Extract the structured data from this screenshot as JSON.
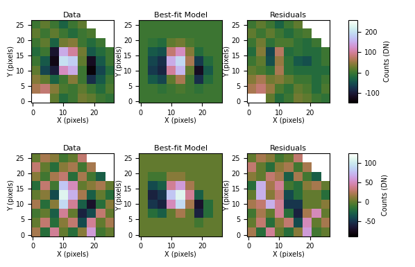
{
  "chart_data": [
    {
      "type": "heatmap",
      "title": "Data",
      "x_label": "X (pixels)",
      "y_label": "Y (pixels)",
      "xlim": [
        -0.5,
        26.5
      ],
      "ylim": [
        -0.5,
        26.5
      ],
      "xticks": [
        0,
        10,
        20
      ],
      "yticks": [
        0,
        5,
        10,
        15,
        20,
        25
      ],
      "color_range": [
        -150,
        260
      ],
      "cells": [
        [
          null,
          null,
          20,
          -20,
          0,
          30,
          20,
          0,
          -10
        ],
        [
          60,
          80,
          40,
          10,
          0,
          20,
          0,
          -20,
          10
        ],
        [
          40,
          20,
          -30,
          0,
          40,
          0,
          -80,
          -40,
          0
        ],
        [
          20,
          -60,
          -100,
          120,
          150,
          0,
          -140,
          -60,
          -20
        ],
        [
          0,
          -40,
          -130,
          200,
          180,
          20,
          -120,
          -40,
          0
        ],
        [
          -20,
          0,
          -110,
          150,
          100,
          30,
          -40,
          -20,
          0
        ],
        [
          0,
          20,
          -30,
          30,
          40,
          0,
          -20,
          0,
          null
        ],
        [
          20,
          0,
          20,
          0,
          -20,
          0,
          10,
          null,
          null
        ],
        [
          0,
          20,
          0,
          -30,
          0,
          20,
          null,
          null,
          null
        ]
      ]
    },
    {
      "type": "heatmap",
      "title": "Best-fit Model",
      "x_label": "X (pixels)",
      "y_label": "Y (pixels)",
      "xlim": [
        -0.5,
        26.5
      ],
      "ylim": [
        -0.5,
        26.5
      ],
      "xticks": [
        0,
        10,
        20
      ],
      "yticks": [
        0,
        5,
        10,
        15,
        20,
        25
      ],
      "color_range": [
        -150,
        260
      ],
      "cells": [
        [
          0,
          0,
          0,
          0,
          0,
          0,
          0,
          0,
          0
        ],
        [
          0,
          0,
          -10,
          0,
          10,
          0,
          -10,
          0,
          0
        ],
        [
          0,
          -40,
          -60,
          20,
          60,
          0,
          -80,
          -20,
          0
        ],
        [
          0,
          -70,
          -90,
          100,
          160,
          20,
          -120,
          -40,
          0
        ],
        [
          0,
          -60,
          -80,
          150,
          190,
          60,
          -70,
          -20,
          0
        ],
        [
          0,
          -40,
          -50,
          80,
          120,
          40,
          -20,
          0,
          0
        ],
        [
          0,
          -10,
          -20,
          20,
          30,
          10,
          0,
          0,
          0
        ],
        [
          0,
          0,
          0,
          0,
          0,
          0,
          0,
          0,
          0
        ],
        [
          0,
          0,
          0,
          0,
          0,
          0,
          0,
          0,
          0
        ]
      ]
    },
    {
      "type": "heatmap",
      "title": "Residuals",
      "x_label": "X (pixels)",
      "y_label": "Y (pixels)",
      "xlim": [
        -0.5,
        26.5
      ],
      "ylim": [
        -0.5,
        26.5
      ],
      "xticks": [
        0,
        10,
        20
      ],
      "yticks": [
        0,
        5,
        10,
        15,
        20,
        25
      ],
      "color_range": [
        -150,
        260
      ],
      "colorbar_ticks": [
        -100,
        0,
        100,
        200
      ],
      "colorbar_label": "Counts (DN)",
      "cells": [
        [
          null,
          null,
          20,
          -20,
          0,
          30,
          20,
          0,
          -10
        ],
        [
          60,
          80,
          50,
          10,
          -10,
          20,
          10,
          -20,
          10
        ],
        [
          40,
          60,
          30,
          40,
          20,
          0,
          0,
          -20,
          0
        ],
        [
          20,
          10,
          -10,
          60,
          -10,
          -20,
          -20,
          -20,
          -20
        ],
        [
          0,
          20,
          -50,
          50,
          -10,
          -40,
          -50,
          -20,
          0
        ],
        [
          -20,
          40,
          -60,
          70,
          -20,
          -10,
          -20,
          -20,
          0
        ],
        [
          0,
          30,
          -10,
          10,
          10,
          -10,
          -20,
          0,
          null
        ],
        [
          20,
          0,
          20,
          0,
          -20,
          0,
          10,
          null,
          null
        ],
        [
          0,
          20,
          0,
          -30,
          0,
          20,
          null,
          null,
          null
        ]
      ]
    },
    {
      "type": "heatmap",
      "title": "Data",
      "x_label": "X (pixels)",
      "y_label": "Y (pixels)",
      "xlim": [
        -0.5,
        26.5
      ],
      "ylim": [
        -0.5,
        26.5
      ],
      "xticks": [
        0,
        10,
        20
      ],
      "yticks": [
        0,
        5,
        10,
        15,
        20,
        25
      ],
      "color_range": [
        -90,
        125
      ],
      "cells": [
        [
          20,
          -20,
          40,
          0,
          -20,
          10,
          60,
          -10,
          0
        ],
        [
          0,
          30,
          -20,
          10,
          30,
          -40,
          40,
          0,
          20
        ],
        [
          -10,
          0,
          -30,
          40,
          0,
          -60,
          -40,
          30,
          0
        ],
        [
          20,
          -20,
          10,
          90,
          40,
          -30,
          -70,
          -20,
          10
        ],
        [
          0,
          10,
          -40,
          110,
          70,
          20,
          -30,
          0,
          -20
        ],
        [
          -20,
          30,
          -10,
          80,
          50,
          0,
          10,
          20,
          0
        ],
        [
          10,
          -10,
          20,
          30,
          -20,
          20,
          -10,
          -30,
          null
        ],
        [
          30,
          0,
          -20,
          10,
          20,
          -10,
          20,
          null,
          null
        ],
        [
          0,
          20,
          10,
          -10,
          0,
          30,
          null,
          null,
          null
        ]
      ]
    },
    {
      "type": "heatmap",
      "title": "Best-fit Model",
      "x_label": "X (pixels)",
      "y_label": "Y (pixels)",
      "xlim": [
        -0.5,
        26.5
      ],
      "ylim": [
        -0.5,
        26.5
      ],
      "xticks": [
        0,
        10,
        20
      ],
      "yticks": [
        0,
        5,
        10,
        15,
        20,
        25
      ],
      "color_range": [
        -90,
        125
      ],
      "cells": [
        [
          0,
          0,
          0,
          0,
          0,
          0,
          0,
          0,
          0
        ],
        [
          0,
          0,
          0,
          0,
          0,
          0,
          -10,
          0,
          0
        ],
        [
          0,
          -20,
          -30,
          0,
          20,
          0,
          -60,
          -20,
          0
        ],
        [
          0,
          -50,
          -60,
          50,
          90,
          20,
          -70,
          -20,
          0
        ],
        [
          0,
          -60,
          -50,
          80,
          110,
          40,
          -30,
          0,
          0
        ],
        [
          0,
          -40,
          -30,
          40,
          60,
          20,
          0,
          0,
          0
        ],
        [
          0,
          -10,
          -10,
          10,
          10,
          0,
          0,
          0,
          0
        ],
        [
          0,
          0,
          0,
          0,
          0,
          0,
          0,
          0,
          0
        ],
        [
          0,
          0,
          0,
          0,
          0,
          0,
          0,
          0,
          0
        ]
      ]
    },
    {
      "type": "heatmap",
      "title": "Residuals",
      "x_label": "X (pixels)",
      "y_label": "Y (pixels)",
      "xlim": [
        -0.5,
        26.5
      ],
      "ylim": [
        -0.5,
        26.5
      ],
      "xticks": [
        0,
        10,
        20
      ],
      "yticks": [
        0,
        5,
        10,
        15,
        20,
        25
      ],
      "color_range": [
        -90,
        125
      ],
      "colorbar_ticks": [
        -50,
        0,
        50,
        100
      ],
      "colorbar_label": "Counts (DN)",
      "cells": [
        [
          20,
          -20,
          40,
          0,
          -20,
          10,
          60,
          -10,
          0
        ],
        [
          0,
          30,
          -20,
          10,
          30,
          -40,
          50,
          0,
          20
        ],
        [
          -10,
          20,
          0,
          40,
          -20,
          -60,
          20,
          50,
          0
        ],
        [
          20,
          30,
          70,
          40,
          -50,
          -50,
          0,
          0,
          10
        ],
        [
          0,
          70,
          10,
          30,
          -40,
          -20,
          0,
          0,
          -20
        ],
        [
          -20,
          70,
          20,
          40,
          -10,
          -20,
          10,
          20,
          0
        ],
        [
          10,
          0,
          30,
          20,
          -30,
          20,
          -10,
          -30,
          null
        ],
        [
          30,
          0,
          -20,
          10,
          20,
          -10,
          20,
          null,
          null
        ],
        [
          0,
          20,
          10,
          -10,
          0,
          30,
          null,
          null,
          null
        ]
      ]
    }
  ]
}
